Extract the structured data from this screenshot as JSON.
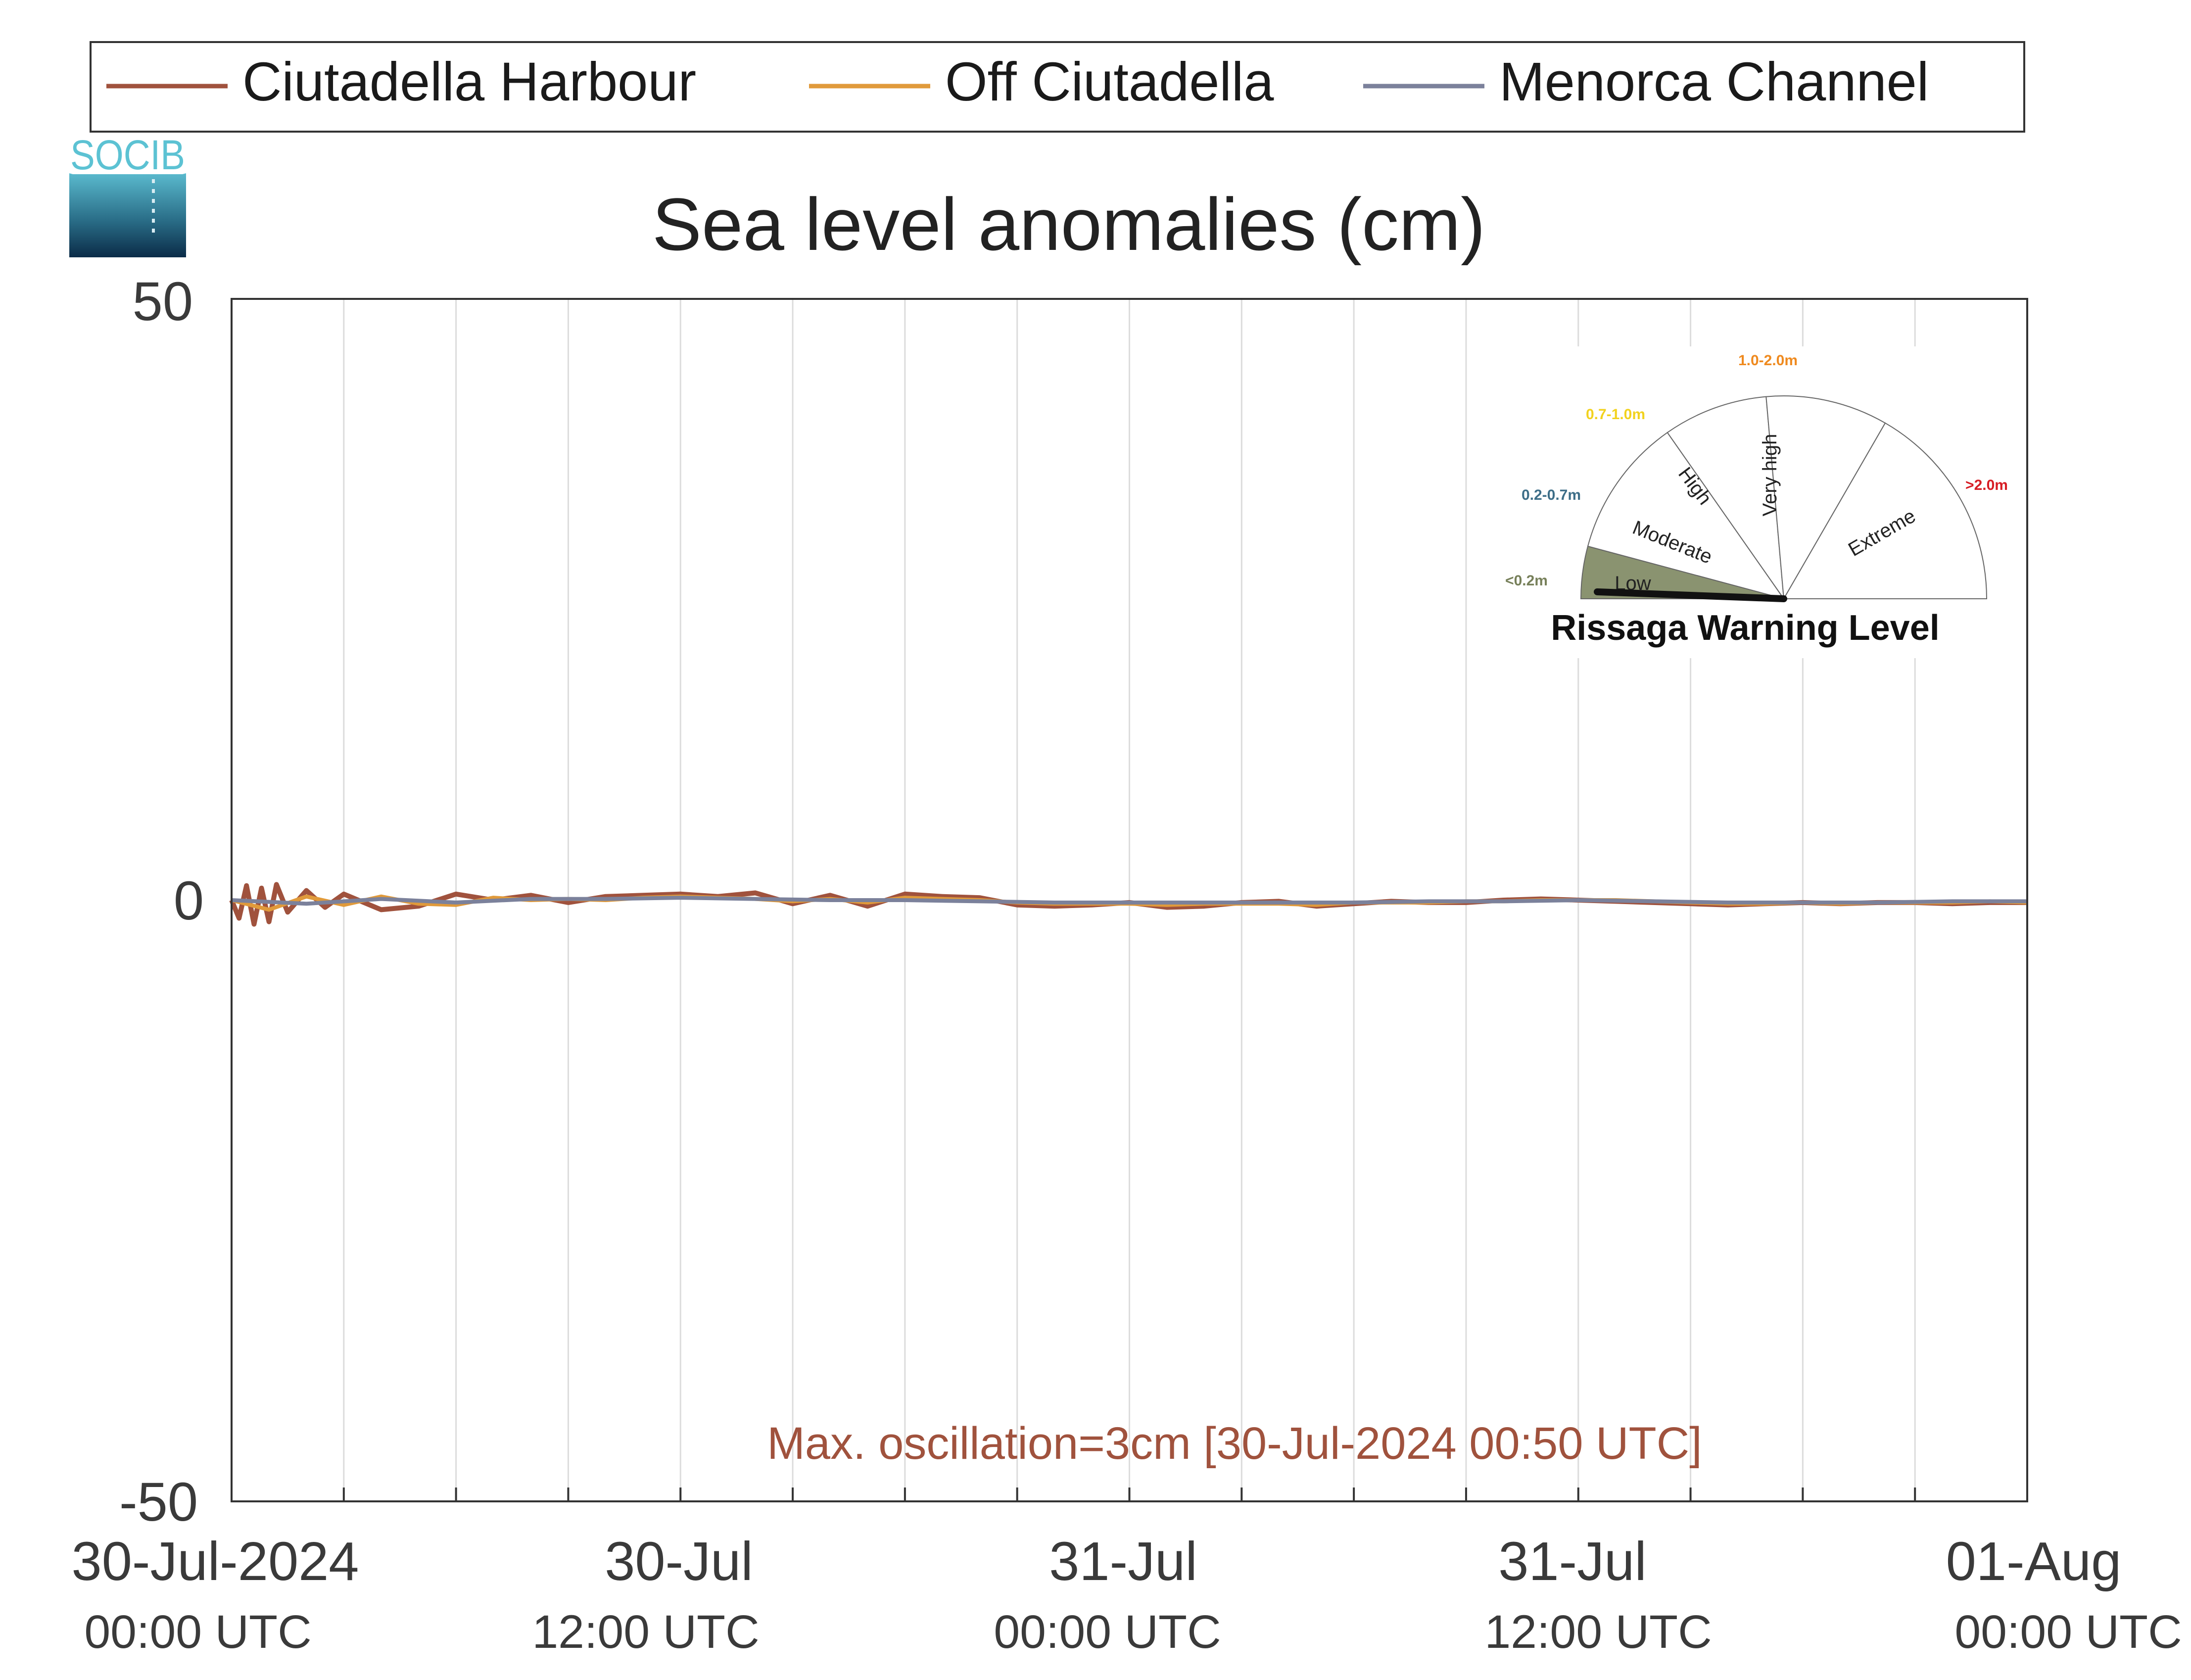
{
  "logo": {
    "text": "SOCIB"
  },
  "chart_data": {
    "type": "line",
    "title": "Sea level anomalies (cm)",
    "xlabel": "",
    "ylabel": "",
    "ylim": [
      -50,
      50
    ],
    "yticks": [
      50,
      0,
      -50
    ],
    "ytick_labels": [
      "50",
      "0",
      "-50"
    ],
    "xlim": [
      "2024-07-30T00:00Z",
      "2024-08-01T00:00Z"
    ],
    "x_unit_hours_from": "2024-07-30T00:00Z",
    "xticks": [
      {
        "line1": "30-Jul-2024",
        "line2": "00:00 UTC"
      },
      {
        "line1": "30-Jul",
        "line2": "12:00 UTC"
      },
      {
        "line1": "31-Jul",
        "line2": "00:00 UTC"
      },
      {
        "line1": "31-Jul",
        "line2": "12:00 UTC"
      },
      {
        "line1": "01-Aug",
        "line2": "00:00 UTC"
      }
    ],
    "grid": true,
    "grid_interval_hours": 3,
    "legend_position": "top",
    "series": [
      {
        "name": "Ciutadella Harbour",
        "color": "#a0523d",
        "x_hours": [
          0,
          0.2,
          0.4,
          0.6,
          0.8,
          1.0,
          1.2,
          1.5,
          2,
          2.5,
          3,
          4,
          5,
          6,
          7,
          8,
          9,
          10,
          11,
          12,
          13,
          14,
          15,
          16,
          17,
          18,
          19,
          20,
          21,
          22,
          23,
          24,
          25,
          26,
          27,
          28,
          29,
          30,
          31,
          32,
          33,
          34,
          35,
          36,
          37,
          38,
          39,
          40,
          41,
          42,
          43,
          44,
          45,
          46,
          47,
          48
        ],
        "values": [
          0,
          -1.5,
          1.2,
          -2,
          1,
          -1.8,
          1.3,
          -1,
          0.8,
          -0.6,
          0.5,
          -0.8,
          -0.5,
          0.5,
          0,
          0.4,
          -0.2,
          0.3,
          0.4,
          0.5,
          0.3,
          0.6,
          -0.3,
          0.4,
          -0.5,
          0.5,
          0.3,
          0.2,
          -0.4,
          -0.5,
          -0.4,
          -0.2,
          -0.6,
          -0.5,
          -0.2,
          -0.1,
          -0.5,
          -0.3,
          -0.1,
          -0.2,
          -0.2,
          0,
          0.1,
          0,
          -0.1,
          -0.2,
          -0.3,
          -0.4,
          -0.3,
          -0.2,
          -0.3,
          -0.2,
          -0.2,
          -0.3,
          -0.2,
          -0.2
        ]
      },
      {
        "name": "Off Ciutadella",
        "color": "#e09a3b",
        "x_hours": [
          0,
          1,
          2,
          3,
          4,
          5,
          6,
          7,
          8,
          9,
          10,
          11,
          12,
          13,
          14,
          15,
          16,
          17,
          18,
          19,
          20,
          21,
          22,
          23,
          24,
          25,
          26,
          27,
          28,
          29,
          30,
          31,
          32,
          33,
          34,
          35,
          36,
          37,
          38,
          39,
          40,
          41,
          42,
          43,
          44,
          45,
          46,
          47,
          48
        ],
        "values": [
          0,
          -0.8,
          0.3,
          -0.4,
          0.3,
          -0.3,
          -0.4,
          0.2,
          0,
          0.1,
          0,
          0.2,
          0.3,
          0.2,
          0.1,
          -0.1,
          0.1,
          -0.2,
          0.2,
          0.1,
          0,
          -0.2,
          -0.3,
          -0.3,
          -0.3,
          -0.4,
          -0.3,
          -0.3,
          -0.3,
          -0.4,
          -0.2,
          -0.2,
          -0.2,
          -0.1,
          -0.1,
          0,
          0,
          0,
          -0.1,
          -0.2,
          -0.3,
          -0.3,
          -0.2,
          -0.3,
          -0.2,
          -0.2,
          -0.2,
          -0.1,
          -0.2
        ]
      },
      {
        "name": "Menorca Channel",
        "color": "#7b819b",
        "x_hours": [
          0,
          2,
          4,
          6,
          8,
          10,
          12,
          14,
          16,
          18,
          20,
          22,
          24,
          26,
          28,
          30,
          32,
          34,
          36,
          38,
          40,
          42,
          44,
          46,
          48
        ],
        "values": [
          0,
          -0.3,
          0.1,
          -0.2,
          0.1,
          0.1,
          0.2,
          0.1,
          0,
          0,
          -0.1,
          -0.2,
          -0.2,
          -0.2,
          -0.2,
          -0.2,
          -0.1,
          -0.1,
          0,
          -0.1,
          -0.2,
          -0.2,
          -0.2,
          -0.1,
          -0.1
        ]
      }
    ],
    "annotation": {
      "text": "Max. oscillation=3cm [30-Jul-2024 00:50 UTC]",
      "color": "#a0523d"
    }
  },
  "inset": {
    "title": "Rissaga Warning Level",
    "sectors": [
      {
        "label": "Low",
        "range": "<0.2m",
        "range_color": "#77805a",
        "fill": "#8a9370"
      },
      {
        "label": "Moderate",
        "range": "0.2-0.7m",
        "range_color": "#3d6e88",
        "fill": "#ffffff"
      },
      {
        "label": "High",
        "range": "0.7-1.0m",
        "range_color": "#f2d21e",
        "fill": "#ffffff"
      },
      {
        "label": "Very high",
        "range": "1.0-2.0m",
        "range_color": "#ef8a1f",
        "fill": "#ffffff"
      },
      {
        "label": "Extreme",
        "range": ">2.0m",
        "range_color": "#d71d24",
        "fill": "#ffffff"
      }
    ],
    "current_level": "Low"
  }
}
